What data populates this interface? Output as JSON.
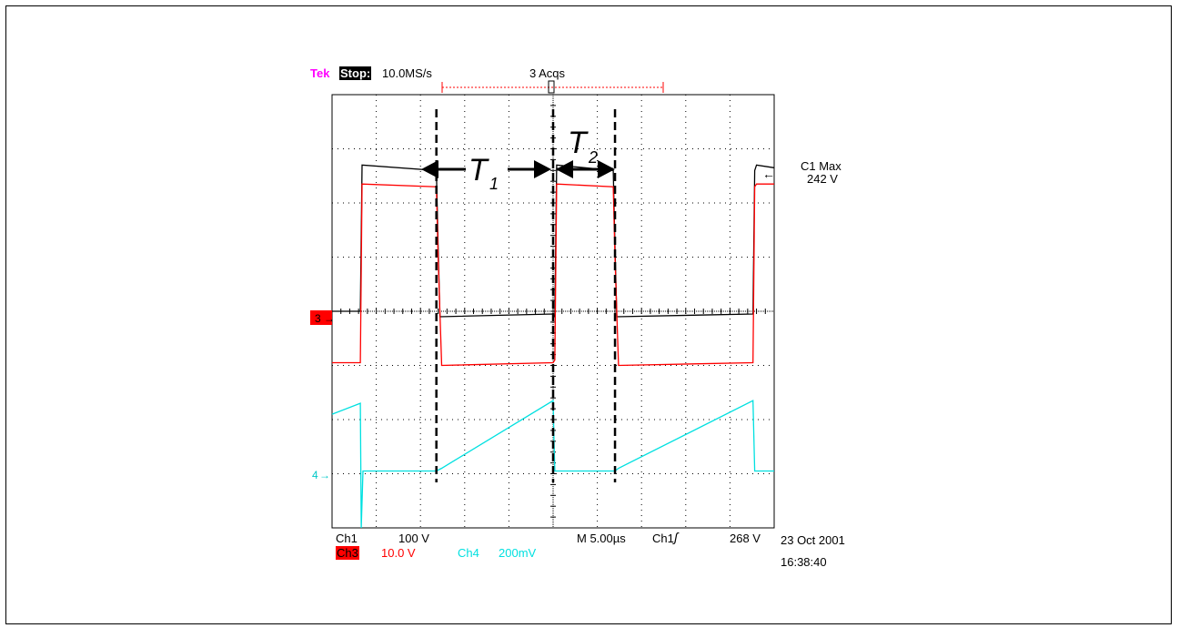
{
  "header": {
    "brand": "Tek",
    "run_state": "Stop:",
    "sample_rate": "10.0MS/s",
    "acquisitions": "3 Acqs"
  },
  "measurement": {
    "label": "C1 Max",
    "value": "242 V"
  },
  "footer": {
    "ch1_label": "Ch1",
    "ch1_scale": "100 V",
    "ch3_label": "Ch3",
    "ch3_scale": "10.0 V",
    "ch4_label": "Ch4",
    "ch4_scale": "200mV",
    "timebase": "M 5.00µs",
    "trigger_source": "Ch1",
    "trigger_level": "268 V",
    "date": "23 Oct 2001",
    "time": "16:38:40"
  },
  "annotations": {
    "t1": "T",
    "t1_sub": "1",
    "t2": "T",
    "t2_sub": "2"
  },
  "markers": {
    "ch3_marker": "3",
    "ch4_marker": "4"
  },
  "colors": {
    "ch1": "#000000",
    "ch3": "#ff0000",
    "ch4": "#00e0e0",
    "brand": "#ff00ff",
    "grid": "#000000"
  },
  "chart_data": {
    "type": "line",
    "title": "",
    "x_unit": "µs",
    "xlim": [
      -25,
      25
    ],
    "ylim": [
      -4,
      4
    ],
    "grid": true,
    "grid_divisions": {
      "x": 10,
      "y": 8
    },
    "series": [
      {
        "name": "Ch1",
        "color": "#000000",
        "x": [
          -25,
          -21.8,
          -21.6,
          -13.2,
          -13.0,
          -12.8,
          0,
          0.2,
          0.4,
          6.8,
          7.0,
          7.2,
          22.6,
          22.8,
          23.0,
          25
        ],
        "y": [
          0,
          0,
          2.7,
          2.6,
          1.2,
          -0.1,
          -0.05,
          -0.1,
          2.7,
          2.6,
          1.2,
          -0.1,
          -0.05,
          2.6,
          2.7,
          2.65
        ]
      },
      {
        "name": "Ch3",
        "color": "#ff0000",
        "x": [
          -25,
          -21.8,
          -21.6,
          -13.2,
          -13.0,
          -12.6,
          0,
          0.2,
          0.4,
          6.8,
          7.0,
          7.4,
          22.6,
          22.8,
          23.0,
          25
        ],
        "y": [
          -0.95,
          -0.95,
          2.35,
          2.3,
          1.0,
          -1.0,
          -0.95,
          -0.9,
          2.35,
          2.3,
          1.0,
          -1.0,
          -0.95,
          2.3,
          2.35,
          2.35
        ]
      },
      {
        "name": "Ch4",
        "color": "#00e0e0",
        "x": [
          -25,
          -21.8,
          -21.7,
          -21.5,
          -13.2,
          -12.6,
          0,
          0.1,
          0.2,
          7.0,
          7.4,
          22.6,
          22.8,
          25
        ],
        "y": [
          -1.9,
          -1.7,
          -4.0,
          -2.95,
          -2.95,
          -2.9,
          -1.65,
          -2.4,
          -2.95,
          -2.95,
          -2.9,
          -1.65,
          -2.95,
          -2.95
        ]
      }
    ],
    "cursors_x": [
      -13.2,
      0,
      7.0
    ]
  }
}
